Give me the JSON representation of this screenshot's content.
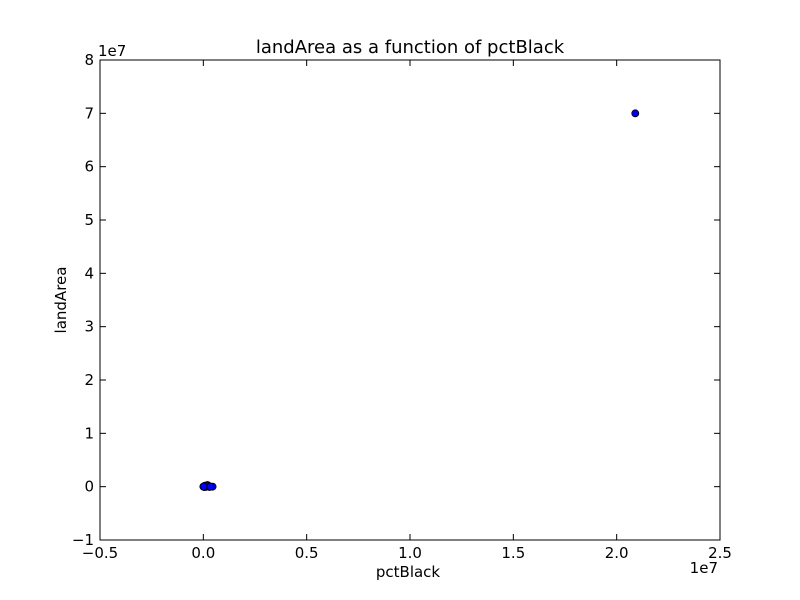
{
  "chart_data": {
    "type": "scatter",
    "title": "landArea as a function of pctBlack",
    "xlabel": "pctBlack",
    "ylabel": "landArea",
    "x_offset_label": "1e7",
    "y_offset_label": "1e7",
    "xlim": [
      -5000000,
      25000000
    ],
    "ylim": [
      -10000000,
      80000000
    ],
    "x_ticks": [
      -5000000,
      0,
      5000000,
      10000000,
      15000000,
      20000000,
      25000000
    ],
    "x_tick_labels": [
      "−0.5",
      "0.0",
      "0.5",
      "1.0",
      "1.5",
      "2.0",
      "2.5"
    ],
    "y_ticks": [
      -10000000,
      0,
      10000000,
      20000000,
      30000000,
      40000000,
      50000000,
      60000000,
      70000000,
      80000000
    ],
    "y_tick_labels": [
      "−1",
      "0",
      "1",
      "2",
      "3",
      "4",
      "5",
      "6",
      "7",
      "8"
    ],
    "grid": false,
    "marker_color": "#0000ff",
    "series": [
      {
        "points": [
          [
            20900000,
            70000000
          ],
          [
            0,
            0
          ],
          [
            30000,
            50000
          ],
          [
            60000,
            -80000
          ],
          [
            100000,
            100000
          ],
          [
            150000,
            150000
          ],
          [
            200000,
            300000
          ],
          [
            250000,
            150000
          ],
          [
            300000,
            -50000
          ],
          [
            450000,
            0
          ],
          [
            120000,
            -30000
          ],
          [
            80000,
            200000
          ],
          [
            180000,
            50000
          ],
          [
            20000,
            -20000
          ],
          [
            220000,
            100000
          ],
          [
            10000,
            30000
          ],
          [
            350000,
            20000
          ]
        ]
      }
    ]
  }
}
